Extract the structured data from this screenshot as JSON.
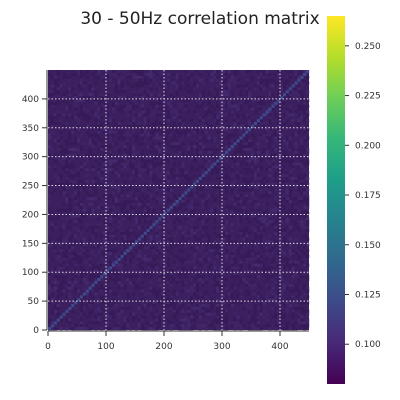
{
  "chart_data": {
    "type": "heatmap",
    "title": "30 - 50Hz correlation matrix",
    "xlabel": "",
    "ylabel": "",
    "size": 450,
    "xlim": [
      0,
      450
    ],
    "ylim": [
      0,
      450
    ],
    "x_ticks": [
      0,
      100,
      200,
      300,
      400
    ],
    "y_ticks": [
      0,
      50,
      100,
      150,
      200,
      250,
      300,
      350,
      400
    ],
    "grid": true,
    "origin": "lower",
    "colorbar": {
      "colormap": "viridis",
      "range": [
        0.08,
        0.265
      ],
      "ticks": [
        "0.100",
        "0.125",
        "0.150",
        "0.175",
        "0.200",
        "0.225",
        "0.250"
      ],
      "tick_values": [
        0.1,
        0.125,
        0.15,
        0.175,
        0.2,
        0.225,
        0.25
      ]
    },
    "colors": {
      "background_cell": "#3b1f5e",
      "diagonal_cell": "#3e4a8a",
      "grid": "#ffffff"
    }
  }
}
